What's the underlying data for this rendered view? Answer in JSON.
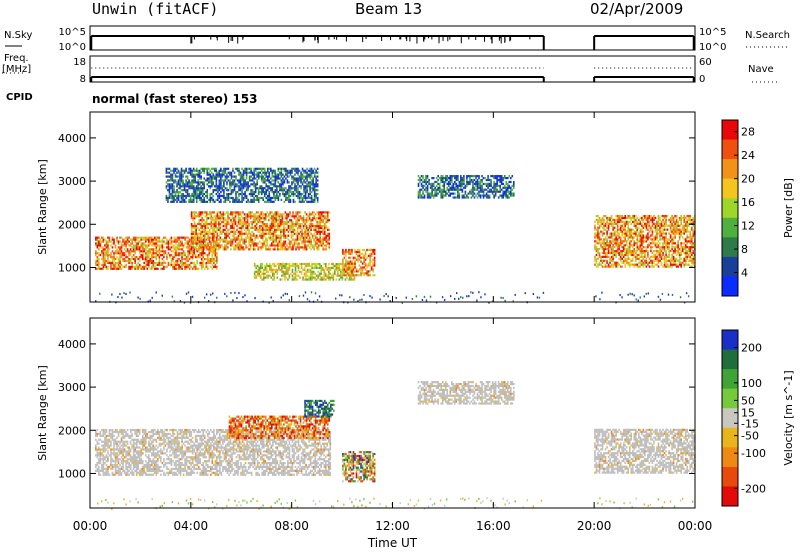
{
  "header": {
    "left": "Unwin (fitACF)",
    "center": "Beam 13",
    "right": "02/Apr/2009"
  },
  "strip_labels": {
    "nsky": "N.Sky",
    "nsearch": "N.Search",
    "freq": "Freq.",
    "freq_unit": "[MHz]",
    "nave": "Nave",
    "cpid": "CPID",
    "nsky_ticks": [
      "10^5",
      "10^0"
    ],
    "nsearch_ticks": [
      "10^5",
      "10^0"
    ],
    "freq_ticks": [
      "18",
      "8"
    ],
    "nave_ticks": [
      "60",
      "0"
    ]
  },
  "mode_text": "normal (fast stereo) 153",
  "colors": {
    "power": [
      "#0a2cff",
      "#1a3f9a",
      "#2f7a4a",
      "#4fb03e",
      "#9ed72a",
      "#f3c51e",
      "#f39218",
      "#ef5010",
      "#e80808"
    ],
    "velocity": [
      "#1a2ec8",
      "#1f6e3c",
      "#3fa335",
      "#76c93a",
      "#c8c8c0",
      "#e8b61c",
      "#ee8a14",
      "#e64a0c",
      "#e30a0a"
    ],
    "ground_scatter": "#bebebe"
  },
  "chart_data": [
    {
      "type": "heatmap",
      "title": "Power",
      "xlabel": "",
      "ylabel": "Slant Range [km]",
      "xlim": [
        "00:00",
        "24:00"
      ],
      "ylim": [
        200,
        4600
      ],
      "x_ticks": [
        "00:00",
        "04:00",
        "08:00",
        "12:00",
        "16:00",
        "20:00",
        "00:00"
      ],
      "y_ticks": [
        1000,
        2000,
        3000,
        4000
      ],
      "colorbar": {
        "label": "Power [dB]",
        "ticks": [
          4,
          8,
          12,
          16,
          20,
          24,
          28
        ],
        "range": [
          0,
          30
        ]
      },
      "data_gap_hours": [
        18.0,
        20.0
      ],
      "echo_regions": [
        {
          "t0": 0.2,
          "t1": 5.0,
          "r0": 950,
          "r1": 1700,
          "level": "high"
        },
        {
          "t0": 4.0,
          "t1": 9.5,
          "r0": 1400,
          "r1": 2300,
          "level": "high"
        },
        {
          "t0": 6.5,
          "t1": 10.5,
          "r0": 700,
          "r1": 1100,
          "level": "medium"
        },
        {
          "t0": 10.0,
          "t1": 11.3,
          "r0": 800,
          "r1": 1400,
          "level": "high"
        },
        {
          "t0": 3.0,
          "t1": 9.0,
          "r0": 2500,
          "r1": 3300,
          "level": "low"
        },
        {
          "t0": 13.0,
          "t1": 16.8,
          "r0": 2600,
          "r1": 3100,
          "level": "low"
        },
        {
          "t0": 20.0,
          "t1": 24.0,
          "r0": 1000,
          "r1": 2200,
          "level": "high"
        }
      ]
    },
    {
      "type": "heatmap",
      "title": "Velocity",
      "xlabel": "Time UT",
      "ylabel": "Slant Range [km]",
      "xlim": [
        "00:00",
        "24:00"
      ],
      "ylim": [
        200,
        4600
      ],
      "x_ticks": [
        "00:00",
        "04:00",
        "08:00",
        "12:00",
        "16:00",
        "20:00",
        "00:00"
      ],
      "y_ticks": [
        1000,
        2000,
        3000,
        4000
      ],
      "colorbar": {
        "label": "Velocity [m s^-1]",
        "ticks": [
          200,
          100,
          50,
          15,
          -15,
          -50,
          -100,
          -200
        ],
        "range": [
          -250,
          250
        ]
      },
      "data_gap_hours": [
        18.0,
        20.0
      ],
      "echo_regions": [
        {
          "t0": 0.2,
          "t1": 9.5,
          "r0": 950,
          "r1": 2000,
          "level": "ground_scatter"
        },
        {
          "t0": 5.5,
          "t1": 9.5,
          "r0": 1800,
          "r1": 2300,
          "level": "negative"
        },
        {
          "t0": 8.5,
          "t1": 9.7,
          "r0": 2300,
          "r1": 2700,
          "level": "positive"
        },
        {
          "t0": 10.0,
          "t1": 11.3,
          "r0": 800,
          "r1": 1500,
          "level": "mixed"
        },
        {
          "t0": 13.0,
          "t1": 16.8,
          "r0": 2600,
          "r1": 3100,
          "level": "ground_scatter"
        },
        {
          "t0": 20.0,
          "t1": 24.0,
          "r0": 1000,
          "r1": 2000,
          "level": "ground_scatter"
        }
      ]
    }
  ]
}
